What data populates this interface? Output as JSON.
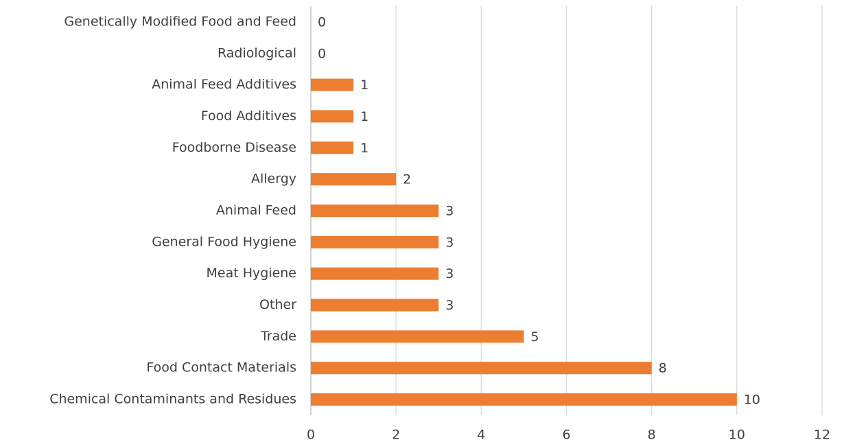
{
  "chart_data": {
    "type": "bar",
    "orientation": "horizontal",
    "categories": [
      "Genetically Modified Food and Feed",
      "Radiological",
      "Animal Feed Additives",
      "Food Additives",
      "Foodborne Disease",
      "Allergy",
      "Animal Feed",
      "General Food Hygiene",
      "Meat Hygiene",
      "Other",
      "Trade",
      "Food Contact Materials",
      "Chemical Contaminants and Residues"
    ],
    "values": [
      0,
      0,
      1,
      1,
      1,
      2,
      3,
      3,
      3,
      3,
      5,
      8,
      10
    ],
    "color": "#ed7d31",
    "xlim": [
      0,
      12
    ],
    "xticks": [
      0,
      2,
      4,
      6,
      8,
      10,
      12
    ],
    "grid": true,
    "data_labels": true
  }
}
